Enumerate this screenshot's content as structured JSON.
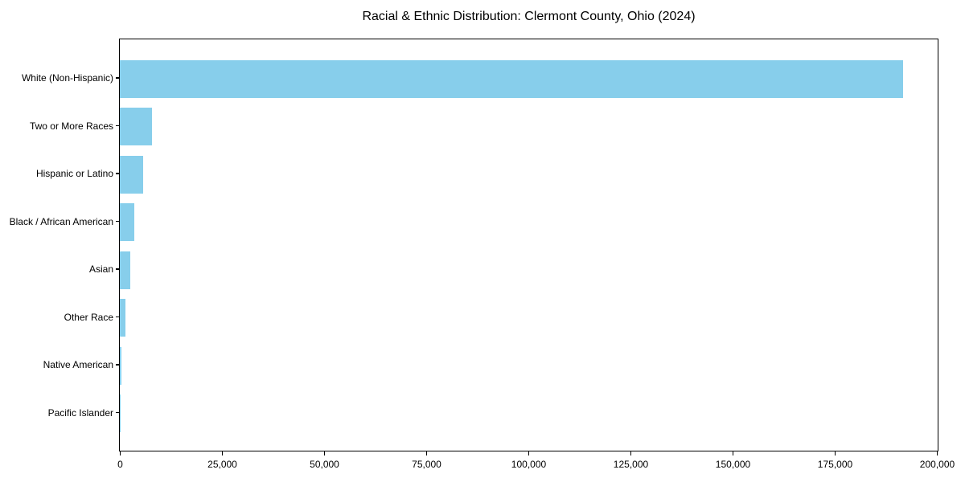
{
  "title": "Racial & Ethnic Distribution: Clermont County, Ohio (2024)",
  "colors": {
    "bar": "#87CEEB",
    "axis": "#000000",
    "background": "#FFFFFF",
    "text": "#000000"
  },
  "chart_data": {
    "type": "bar",
    "orientation": "horizontal",
    "title": "Racial & Ethnic Distribution: Clermont County, Ohio (2024)",
    "categories": [
      "White (Non-Hispanic)",
      "Two or More Races",
      "Hispanic or Latino",
      "Black / African American",
      "Asian",
      "Other Race",
      "Native American",
      "Pacific Islander"
    ],
    "values": [
      191500,
      7900,
      5700,
      3500,
      2600,
      1400,
      350,
      90
    ],
    "xlabel": "",
    "ylabel": "",
    "xlim": [
      0,
      200000
    ],
    "xticks": [
      0,
      25000,
      50000,
      75000,
      100000,
      125000,
      150000,
      175000,
      200000
    ],
    "xtick_labels": [
      "0",
      "25,000",
      "50,000",
      "75,000",
      "100,000",
      "125,000",
      "150,000",
      "175,000",
      "200,000"
    ],
    "grid": false,
    "legend_position": "none",
    "bar_color": "#87CEEB"
  }
}
